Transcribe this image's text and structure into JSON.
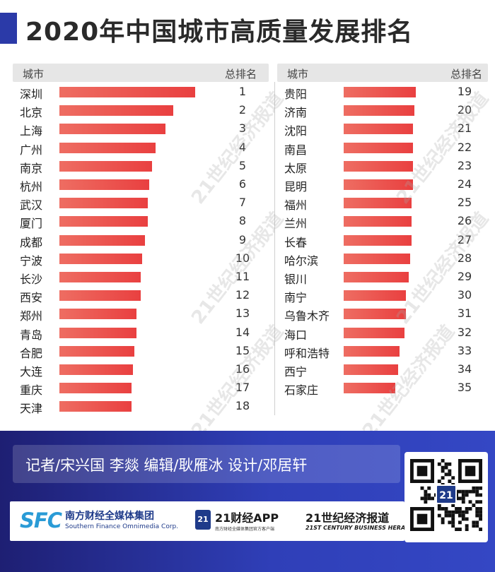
{
  "title": "2020年中国城市高质量发展排名",
  "table_headers": {
    "city": "城市",
    "rank": "总排名"
  },
  "chart_data": {
    "type": "bar",
    "title": "2020年中国城市高质量发展排名",
    "columns": [
      "城市",
      "总排名"
    ],
    "rows": [
      {
        "city": "深圳",
        "rank": 1,
        "score": 1.0
      },
      {
        "city": "北京",
        "rank": 2,
        "score": 0.84
      },
      {
        "city": "上海",
        "rank": 3,
        "score": 0.78
      },
      {
        "city": "广州",
        "rank": 4,
        "score": 0.71
      },
      {
        "city": "南京",
        "rank": 5,
        "score": 0.68
      },
      {
        "city": "杭州",
        "rank": 6,
        "score": 0.66
      },
      {
        "city": "武汉",
        "rank": 7,
        "score": 0.65
      },
      {
        "city": "厦门",
        "rank": 8,
        "score": 0.65
      },
      {
        "city": "成都",
        "rank": 9,
        "score": 0.63
      },
      {
        "city": "宁波",
        "rank": 10,
        "score": 0.61
      },
      {
        "city": "长沙",
        "rank": 11,
        "score": 0.6
      },
      {
        "city": "西安",
        "rank": 12,
        "score": 0.6
      },
      {
        "city": "郑州",
        "rank": 13,
        "score": 0.57
      },
      {
        "city": "青岛",
        "rank": 14,
        "score": 0.57
      },
      {
        "city": "合肥",
        "rank": 15,
        "score": 0.55
      },
      {
        "city": "大连",
        "rank": 16,
        "score": 0.54
      },
      {
        "city": "重庆",
        "rank": 17,
        "score": 0.53
      },
      {
        "city": "天津",
        "rank": 18,
        "score": 0.53
      },
      {
        "city": "贵阳",
        "rank": 19,
        "score": 0.53
      },
      {
        "city": "济南",
        "rank": 20,
        "score": 0.52
      },
      {
        "city": "沈阳",
        "rank": 21,
        "score": 0.51
      },
      {
        "city": "南昌",
        "rank": 22,
        "score": 0.51
      },
      {
        "city": "太原",
        "rank": 23,
        "score": 0.51
      },
      {
        "city": "昆明",
        "rank": 24,
        "score": 0.51
      },
      {
        "city": "福州",
        "rank": 25,
        "score": 0.5
      },
      {
        "city": "兰州",
        "rank": 26,
        "score": 0.5
      },
      {
        "city": "长春",
        "rank": 27,
        "score": 0.5
      },
      {
        "city": "哈尔滨",
        "rank": 28,
        "score": 0.49
      },
      {
        "city": "银川",
        "rank": 29,
        "score": 0.48
      },
      {
        "city": "南宁",
        "rank": 30,
        "score": 0.46
      },
      {
        "city": "乌鲁木齐",
        "rank": 31,
        "score": 0.46
      },
      {
        "city": "海口",
        "rank": 32,
        "score": 0.45
      },
      {
        "city": "呼和浩特",
        "rank": 33,
        "score": 0.41
      },
      {
        "city": "西宁",
        "rank": 34,
        "score": 0.4
      },
      {
        "city": "石家庄",
        "rank": 35,
        "score": 0.38
      }
    ],
    "bar_color": "#e94a45",
    "grid": false
  },
  "watermark": "21世纪经济报道",
  "credits": "记者/宋兴国 李燚 编辑/耿雁冰 设计/邓居轩",
  "logos": {
    "sfc_mark": "SFC",
    "sfc_cn": "南方财经全媒体集团",
    "sfc_en": "Southern Finance Omnimedia Corp.",
    "app_badge": "21",
    "app_name": "21财经APP",
    "app_sub": "南方财经全媒体集团官方客户端",
    "herald_cn": "21世纪经济报道",
    "herald_en": "21ST CENTURY BUSINESS HERALD"
  },
  "qr_badge": "21",
  "colors": {
    "accent": "#2b3aa8",
    "footer": "#2f3fb8",
    "bar": "#e94a45",
    "logo_blue": "#1f3b8a"
  }
}
